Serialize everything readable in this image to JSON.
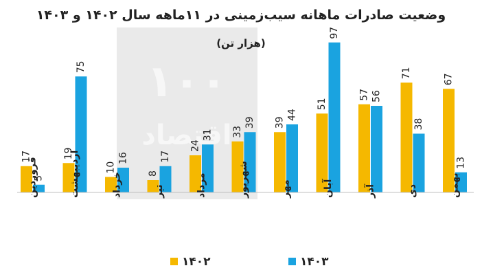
{
  "chart_data": {
    "type": "bar",
    "title": "وضعیت صادرات ماهانه سیب‌زمینی در ۱۱ماهه سال ۱۴۰۲ و ۱۴۰۳",
    "subtitle": "(هزار تن)",
    "categories": [
      "فروردین",
      "اردیبهشت",
      "خرداد",
      "تیر",
      "مرداد",
      "شهریور",
      "مهر",
      "آبان",
      "آذر",
      "دی",
      "بهمن"
    ],
    "series": [
      {
        "name": "۱۴۰۲",
        "color": "#f5b800",
        "values": [
          17,
          19,
          10,
          8,
          24,
          33,
          39,
          51,
          57,
          71,
          67
        ]
      },
      {
        "name": "۱۴۰۳",
        "color": "#1aa3e0",
        "values": [
          5,
          75,
          16,
          17,
          31,
          39,
          44,
          97,
          56,
          38,
          13
        ]
      }
    ],
    "ylim": [
      0,
      100
    ],
    "grid": false,
    "legend_position": "bottom",
    "watermark": "اقتصاد ۱۰۰"
  }
}
